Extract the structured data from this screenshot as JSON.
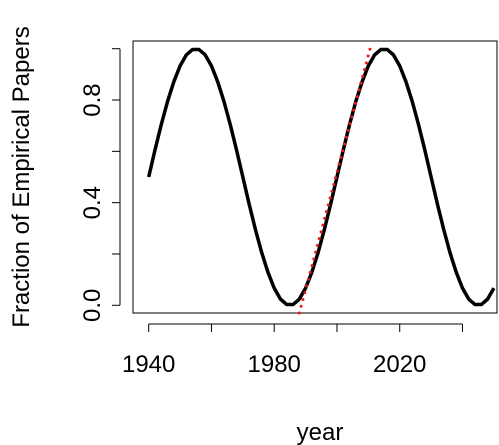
{
  "chart_data": {
    "type": "line",
    "title": "",
    "xlabel": "year",
    "ylabel": "Fraction of Empirical Papers",
    "xlim": [
      1935,
      2051
    ],
    "ylim": [
      -0.03,
      1.03
    ],
    "grid": false,
    "legend": "none",
    "x_ticks": [
      1940,
      1960,
      1980,
      2000,
      2020,
      2040
    ],
    "x_tick_labels": [
      "1940",
      "1980",
      "2020"
    ],
    "y_ticks": [
      0.0,
      0.2,
      0.4,
      0.6,
      0.8,
      1.0
    ],
    "y_tick_labels": [
      "0.0",
      "0.4",
      "0.8"
    ],
    "series": [
      {
        "style": "solid",
        "color": "#000000",
        "x": [
          1940,
          1942,
          1944,
          1946,
          1948,
          1950,
          1952,
          1954,
          1956,
          1958,
          1960,
          1962,
          1964,
          1966,
          1968,
          1970,
          1972,
          1974,
          1976,
          1978,
          1980,
          1982,
          1984,
          1986,
          1988,
          1990,
          1992,
          1994,
          1996,
          1998,
          2000,
          2002,
          2004,
          2006,
          2008,
          2010,
          2012,
          2014,
          2016,
          2018,
          2020,
          2022,
          2024,
          2026,
          2028,
          2030,
          2032,
          2034,
          2036,
          2038,
          2040,
          2042,
          2044,
          2046,
          2048,
          2050
        ],
        "y": [
          0.5,
          0.605,
          0.704,
          0.794,
          0.871,
          0.933,
          0.976,
          0.997,
          0.997,
          0.976,
          0.933,
          0.871,
          0.794,
          0.704,
          0.605,
          0.5,
          0.395,
          0.296,
          0.206,
          0.129,
          0.067,
          0.024,
          0.003,
          0.003,
          0.024,
          0.067,
          0.129,
          0.206,
          0.296,
          0.395,
          0.5,
          0.605,
          0.704,
          0.794,
          0.871,
          0.933,
          0.976,
          0.997,
          0.997,
          0.976,
          0.933,
          0.871,
          0.794,
          0.704,
          0.605,
          0.5,
          0.395,
          0.296,
          0.206,
          0.129,
          0.067,
          0.024,
          0.003,
          0.003,
          0.024,
          0.067
        ]
      },
      {
        "style": "dotted",
        "color": "#e41a1c",
        "x": [
          1988,
          2011
        ],
        "y": [
          -0.03,
          1.02
        ]
      }
    ]
  }
}
